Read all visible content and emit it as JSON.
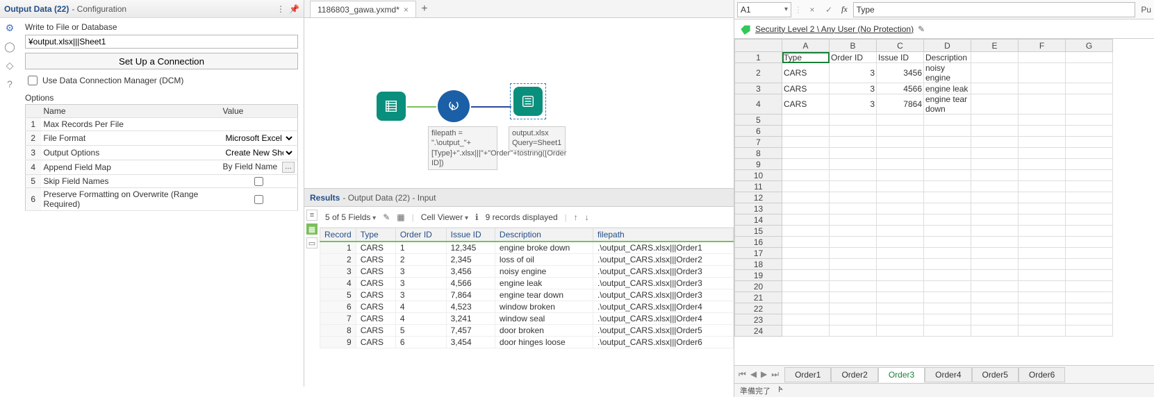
{
  "config": {
    "title": "Output Data (22)",
    "subtitle": "- Configuration",
    "write_label": "Write to File or Database",
    "output_path": "¥output.xlsx|||Sheet1",
    "setup_btn": "Set Up a Connection",
    "dcm_label": "Use Data Connection Manager (DCM)",
    "options_label": "Options",
    "columns": {
      "name": "Name",
      "value": "Value"
    },
    "rows": [
      {
        "n": "1",
        "name": "Max Records Per File",
        "type": "text",
        "value": ""
      },
      {
        "n": "2",
        "name": "File Format",
        "type": "select",
        "value": "Microsoft Excel (*.xls"
      },
      {
        "n": "3",
        "name": "Output Options",
        "type": "select",
        "value": "Create New Sheet"
      },
      {
        "n": "4",
        "name": "Append Field Map",
        "type": "ellipsis",
        "value": "By Field Name"
      },
      {
        "n": "5",
        "name": "Skip Field Names",
        "type": "checkbox",
        "checked": false
      },
      {
        "n": "6",
        "name": "Preserve Formatting on Overwrite (Range Required)",
        "type": "checkbox",
        "checked": false
      }
    ]
  },
  "workflow": {
    "tab_name": "1186803_gawa.yxmd*",
    "formula_annotation": "filepath = \".\\output_\"+[Type]+\".xlsx|||\"+\"Order\"+tostring([Order ID])",
    "output_annotation": "output.xlsx\nQuery=Sheet1"
  },
  "results": {
    "title": "Results",
    "subtitle": "- Output Data (22) - Input",
    "fields_text": "5 of 5 Fields",
    "cellviewer": "Cell Viewer",
    "records_text": "9 records displayed",
    "columns": [
      "Record",
      "Type",
      "Order ID",
      "Issue ID",
      "Description",
      "filepath"
    ],
    "rows": [
      [
        "1",
        "CARS",
        "1",
        "12,345",
        "engine broke down",
        ".\\output_CARS.xlsx|||Order1"
      ],
      [
        "2",
        "CARS",
        "2",
        "2,345",
        "loss of oil",
        ".\\output_CARS.xlsx|||Order2"
      ],
      [
        "3",
        "CARS",
        "3",
        "3,456",
        "noisy engine",
        ".\\output_CARS.xlsx|||Order3"
      ],
      [
        "4",
        "CARS",
        "3",
        "4,566",
        "engine leak",
        ".\\output_CARS.xlsx|||Order3"
      ],
      [
        "5",
        "CARS",
        "3",
        "7,864",
        "engine tear down",
        ".\\output_CARS.xlsx|||Order3"
      ],
      [
        "6",
        "CARS",
        "4",
        "4,523",
        "window broken",
        ".\\output_CARS.xlsx|||Order4"
      ],
      [
        "7",
        "CARS",
        "4",
        "3,241",
        "window seal",
        ".\\output_CARS.xlsx|||Order4"
      ],
      [
        "8",
        "CARS",
        "5",
        "7,457",
        "door broken",
        ".\\output_CARS.xlsx|||Order5"
      ],
      [
        "9",
        "CARS",
        "6",
        "3,454",
        "door hinges loose",
        ".\\output_CARS.xlsx|||Order6"
      ]
    ]
  },
  "excel": {
    "namebox": "A1",
    "formula_value": "Type",
    "pu": "Pu",
    "security_text": "Security Level 2 \\ Any User (No Protection)",
    "col_headers": [
      "A",
      "B",
      "C",
      "D",
      "E",
      "F",
      "G"
    ],
    "row_count": 24,
    "data": {
      "1": [
        "Type",
        "Order ID",
        "Issue ID",
        "Description",
        "",
        "",
        ""
      ],
      "2": [
        "CARS",
        "3",
        "3456",
        "noisy engine",
        "",
        "",
        ""
      ],
      "3": [
        "CARS",
        "3",
        "4566",
        "engine leak",
        "",
        "",
        ""
      ],
      "4": [
        "CARS",
        "3",
        "7864",
        "engine tear down",
        "",
        "",
        ""
      ]
    },
    "numeric_cols": [
      1,
      2
    ],
    "selected": {
      "row": 1,
      "col": 0
    },
    "sheet_tabs": [
      "Order1",
      "Order2",
      "Order3",
      "Order4",
      "Order5",
      "Order6"
    ],
    "active_sheet": 2,
    "status": {
      "ready": "準備完了",
      "acc": "𐊀"
    }
  },
  "colors": {
    "link_badge": "#34c759",
    "teal": "#0b8f7d",
    "blue": "#1b5fa7",
    "header_text": "#244e86",
    "grid_border": "#dddddd",
    "excel_sel": "#1a7f37"
  }
}
